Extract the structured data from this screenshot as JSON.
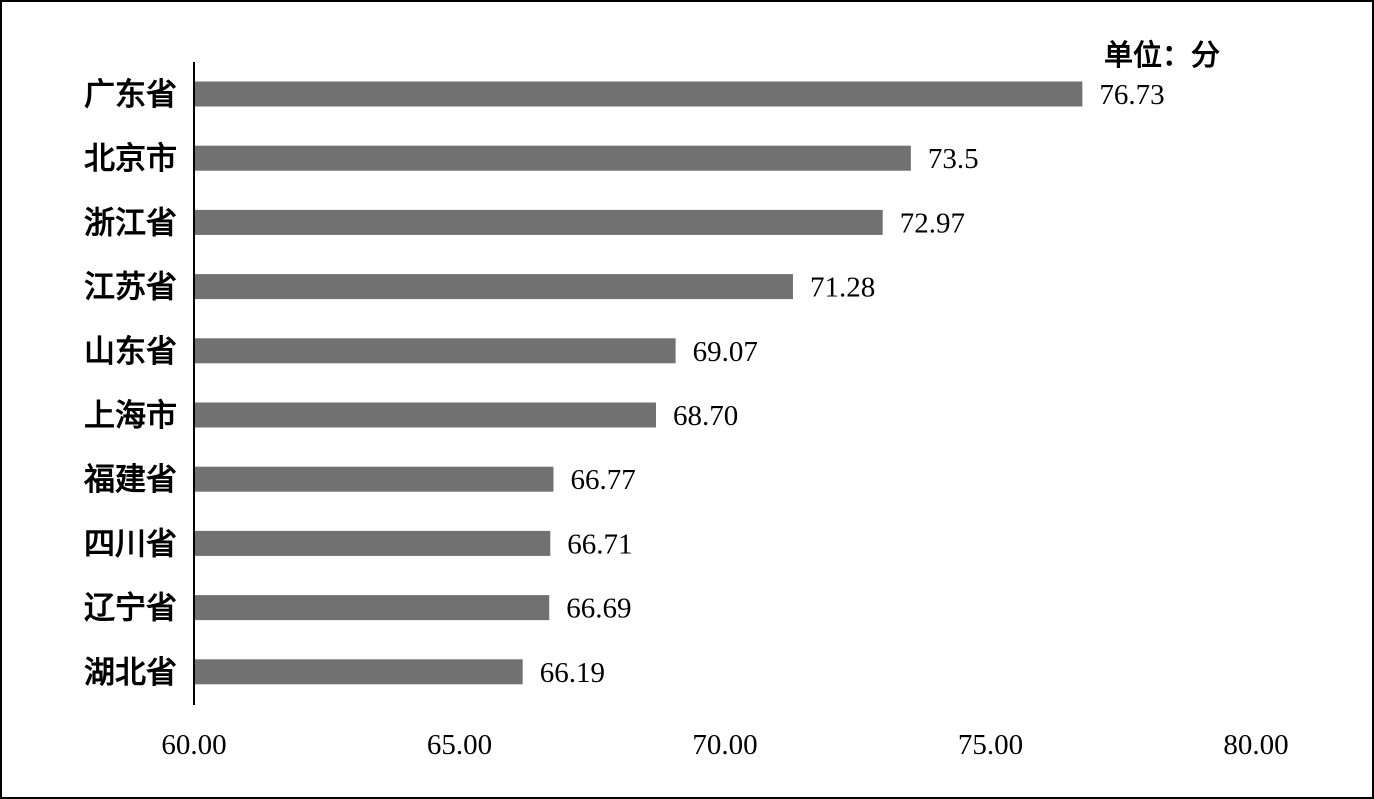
{
  "chart_data": {
    "type": "bar",
    "orientation": "horizontal",
    "unit_label": "单位：分",
    "categories": [
      "广东省",
      "北京市",
      "浙江省",
      "江苏省",
      "山东省",
      "上海市",
      "福建省",
      "四川省",
      "辽宁省",
      "湖北省"
    ],
    "values": [
      76.73,
      73.5,
      72.97,
      71.28,
      69.07,
      68.7,
      66.77,
      66.71,
      66.69,
      66.19
    ],
    "value_labels": [
      "76.73",
      "73.5",
      "72.97",
      "71.28",
      "69.07",
      "68.70",
      "66.77",
      "66.71",
      "66.69",
      "66.19"
    ],
    "xlim": [
      60,
      80
    ],
    "x_ticks": [
      "60.00",
      "65.00",
      "70.00",
      "75.00",
      "80.00"
    ],
    "bar_color": "#717171",
    "grid": false,
    "legend": false
  }
}
